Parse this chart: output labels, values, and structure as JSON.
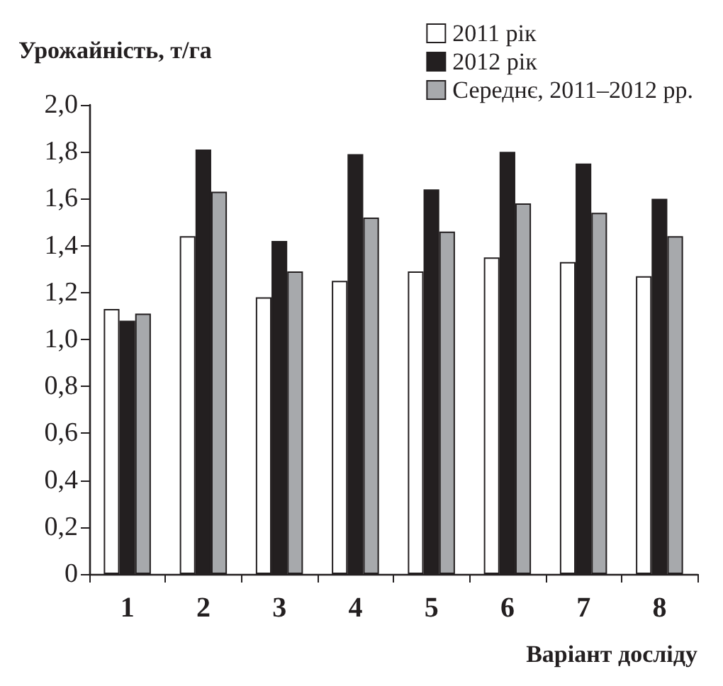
{
  "chart_data": {
    "type": "bar",
    "ylabel": "Урожайність, т/га",
    "xlabel": "Варіант досліду",
    "categories": [
      "1",
      "2",
      "3",
      "4",
      "5",
      "6",
      "7",
      "8"
    ],
    "series": [
      {
        "name": "2011 рік",
        "color": "#ffffff",
        "values": [
          1.13,
          1.44,
          1.18,
          1.25,
          1.29,
          1.35,
          1.33,
          1.27
        ]
      },
      {
        "name": "2012 рік",
        "color": "#231f20",
        "values": [
          1.08,
          1.81,
          1.42,
          1.79,
          1.64,
          1.8,
          1.75,
          1.6
        ]
      },
      {
        "name": "Середнє, 2011–2012 рр.",
        "color": "#a7a9ac",
        "values": [
          1.11,
          1.63,
          1.29,
          1.52,
          1.46,
          1.58,
          1.54,
          1.44
        ]
      }
    ],
    "ylim": [
      0,
      2
    ],
    "yticks": [
      0,
      {
        "value": 0.2,
        "label": "0,2"
      },
      {
        "value": 0.4,
        "label": "0,4"
      },
      {
        "value": 0.6,
        "label": "0,6"
      },
      {
        "value": 0.8,
        "label": "0,8"
      },
      {
        "value": 1.0,
        "label": "1,0"
      },
      {
        "value": 1.2,
        "label": "1,2"
      },
      {
        "value": 1.4,
        "label": "1,4"
      },
      {
        "value": 1.6,
        "label": "1,6"
      },
      {
        "value": 1.8,
        "label": "1,8"
      },
      {
        "value": 2.0,
        "label": "2,0"
      }
    ],
    "grid": false,
    "legend": "top right"
  }
}
